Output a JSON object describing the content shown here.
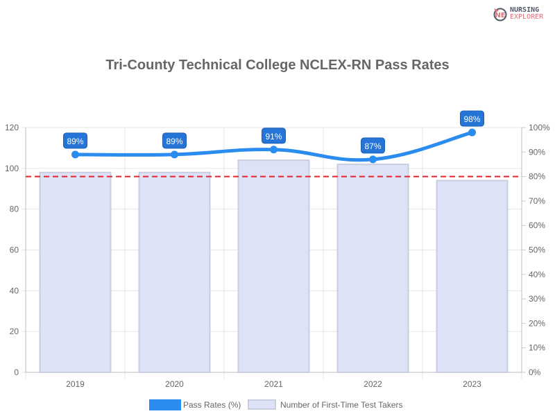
{
  "logo": {
    "line1": "NURSING",
    "line2": "EXPLORER",
    "accent": "#e0707a"
  },
  "chart_data": {
    "type": "bar+line",
    "title": "Tri-County Technical College NCLEX-RN Pass Rates",
    "categories": [
      "2019",
      "2020",
      "2021",
      "2022",
      "2023"
    ],
    "series": [
      {
        "name": "Pass Rates (%)",
        "type": "line",
        "axis": "right",
        "values": [
          89,
          89,
          91,
          87,
          98
        ],
        "labels": [
          "89%",
          "89%",
          "91%",
          "87%",
          "98%"
        ],
        "color": "#2b8cf0"
      },
      {
        "name": "Number of First-Time Test Takers",
        "type": "bar",
        "axis": "left",
        "values": [
          98,
          98,
          104,
          102,
          94
        ],
        "color": "#dde2f6",
        "border": "#c8cde0"
      }
    ],
    "left_axis": {
      "ylim": [
        0,
        120
      ],
      "ticks": [
        "0",
        "20",
        "40",
        "60",
        "80",
        "100",
        "120"
      ]
    },
    "right_axis": {
      "ylim": [
        0,
        100
      ],
      "ticks": [
        "0%",
        "10%",
        "20%",
        "30%",
        "40%",
        "50%",
        "60%",
        "70%",
        "80%",
        "90%",
        "100%"
      ]
    },
    "reference_line": {
      "value": 80,
      "axis": "right",
      "color": "#e8202a",
      "style": "dashed"
    },
    "grid": true,
    "legend": "bottom"
  }
}
